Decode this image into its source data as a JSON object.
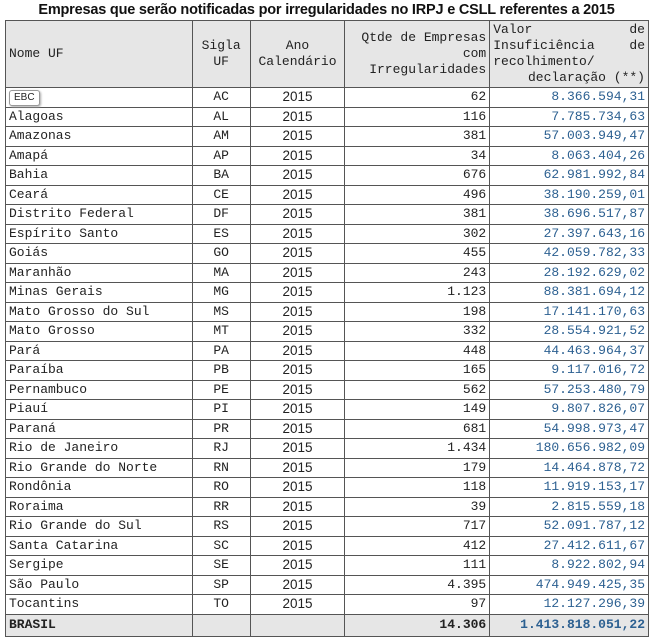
{
  "title": "Empresas que serão notificadas por irregularidades no IRPJ e CSLL referentes a 2015",
  "watermark": "EBC",
  "headers": {
    "nome": "Nome UF",
    "sigla": "Sigla UF",
    "ano": "Ano Calendário",
    "qtde": "Qtde de Empresas com Irregularidades",
    "valor": "Valor de Insuficiência de recolhimento/ declaração (**)"
  },
  "rows": [
    [
      "",
      "AC",
      "2015",
      "62",
      "8.366.594,31"
    ],
    [
      "Alagoas",
      "AL",
      "2015",
      "116",
      "7.785.734,63"
    ],
    [
      "Amazonas",
      "AM",
      "2015",
      "381",
      "57.003.949,47"
    ],
    [
      "Amapá",
      "AP",
      "2015",
      "34",
      "8.063.404,26"
    ],
    [
      "Bahia",
      "BA",
      "2015",
      "676",
      "62.981.992,84"
    ],
    [
      "Ceará",
      "CE",
      "2015",
      "496",
      "38.190.259,01"
    ],
    [
      "Distrito Federal",
      "DF",
      "2015",
      "381",
      "38.696.517,87"
    ],
    [
      "Espírito Santo",
      "ES",
      "2015",
      "302",
      "27.397.643,16"
    ],
    [
      "Goiás",
      "GO",
      "2015",
      "455",
      "42.059.782,33"
    ],
    [
      "Maranhão",
      "MA",
      "2015",
      "243",
      "28.192.629,02"
    ],
    [
      "Minas Gerais",
      "MG",
      "2015",
      "1.123",
      "88.381.694,12"
    ],
    [
      "Mato Grosso do Sul",
      "MS",
      "2015",
      "198",
      "17.141.170,63"
    ],
    [
      "Mato Grosso",
      "MT",
      "2015",
      "332",
      "28.554.921,52"
    ],
    [
      "Pará",
      "PA",
      "2015",
      "448",
      "44.463.964,37"
    ],
    [
      "Paraíba",
      "PB",
      "2015",
      "165",
      "9.117.016,72"
    ],
    [
      "Pernambuco",
      "PE",
      "2015",
      "562",
      "57.253.480,79"
    ],
    [
      "Piauí",
      "PI",
      "2015",
      "149",
      "9.807.826,07"
    ],
    [
      "Paraná",
      "PR",
      "2015",
      "681",
      "54.998.973,47"
    ],
    [
      "Rio de Janeiro",
      "RJ",
      "2015",
      "1.434",
      "180.656.982,09"
    ],
    [
      "Rio Grande do Norte",
      "RN",
      "2015",
      "179",
      "14.464.878,72"
    ],
    [
      "Rondônia",
      "RO",
      "2015",
      "118",
      "11.919.153,17"
    ],
    [
      "Roraima",
      "RR",
      "2015",
      "39",
      "2.815.559,18"
    ],
    [
      "Rio Grande do Sul",
      "RS",
      "2015",
      "717",
      "52.091.787,12"
    ],
    [
      "Santa Catarina",
      "SC",
      "2015",
      "412",
      "27.412.611,67"
    ],
    [
      "Sergipe",
      "SE",
      "2015",
      "111",
      "8.922.802,94"
    ],
    [
      "São Paulo",
      "SP",
      "2015",
      "4.395",
      "474.949.425,35"
    ],
    [
      "Tocantins",
      "TO",
      "2015",
      "97",
      "12.127.296,39"
    ]
  ],
  "total": {
    "nome": "BRASIL",
    "qtde": "14.306",
    "valor": "1.413.818.051,22"
  },
  "colors": {
    "value_text": "#2c6091",
    "header_bg": "#e6e6e6"
  }
}
